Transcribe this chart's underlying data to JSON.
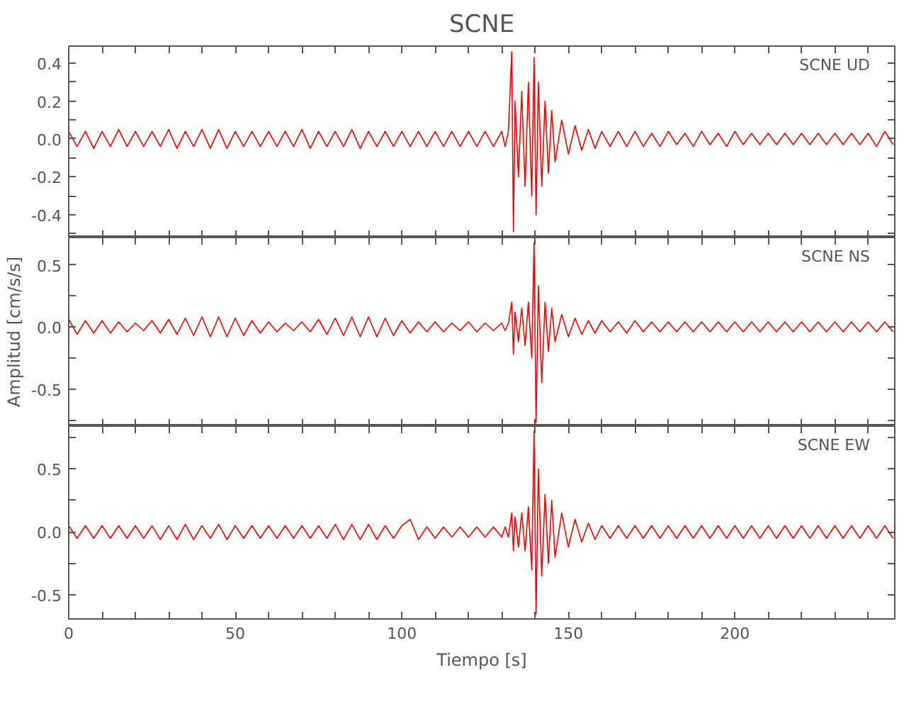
{
  "chart_data": [
    {
      "type": "line",
      "title": "SCNE",
      "color": "#ff0000",
      "grid": false,
      "tick_labels": "y",
      "annotations": [
        "SCNE UD"
      ],
      "xlim": [
        0,
        248
      ],
      "ylim": [
        -0.52,
        0.49
      ],
      "xticks": [
        0,
        {
          "value": 10,
          "label": null
        },
        {
          "value": 20,
          "label": null
        },
        {
          "value": 30,
          "label": null
        },
        {
          "value": 40,
          "label": null
        },
        50,
        {
          "value": 60,
          "label": null
        },
        {
          "value": 70,
          "label": null
        },
        {
          "value": 80,
          "label": null
        },
        {
          "value": 90,
          "label": null
        },
        100,
        {
          "value": 110,
          "label": null
        },
        {
          "value": 120,
          "label": null
        },
        {
          "value": 130,
          "label": null
        },
        {
          "value": 140,
          "label": null
        },
        150,
        {
          "value": 160,
          "label": null
        },
        {
          "value": 170,
          "label": null
        },
        {
          "value": 180,
          "label": null
        },
        {
          "value": 190,
          "label": null
        },
        200,
        {
          "value": 210,
          "label": null
        },
        {
          "value": 220,
          "label": null
        },
        {
          "value": 230,
          "label": null
        },
        {
          "value": 240,
          "label": null
        }
      ],
      "yticks": [
        {
          "value": -0.5,
          "label": null
        },
        -0.4,
        {
          "value": -0.3,
          "label": null
        },
        -0.2,
        {
          "value": -0.1,
          "label": null
        },
        {
          "value": 0,
          "label": "0.0"
        },
        {
          "value": 0.1,
          "label": null
        },
        0.2,
        {
          "value": 0.3,
          "label": null
        },
        0.4
      ],
      "x": [
        0,
        2.5,
        5,
        7.5,
        10,
        12.5,
        15,
        17.5,
        20,
        22.5,
        25,
        27.5,
        30,
        32.5,
        35,
        37.5,
        40,
        42.5,
        45,
        47.5,
        50,
        52.5,
        55,
        57.5,
        60,
        62.5,
        65,
        67.5,
        70,
        72.5,
        75,
        77.5,
        80,
        82.5,
        85,
        87.5,
        90,
        92.5,
        95,
        97.5,
        100,
        102.5,
        105,
        107.5,
        110,
        112.5,
        115,
        117.5,
        120,
        122.5,
        125,
        127.5,
        130,
        131,
        132,
        133,
        133.5,
        134,
        135,
        136,
        137,
        138,
        139,
        139.7,
        140.3,
        141,
        142,
        143,
        144,
        145,
        146,
        148,
        150,
        152,
        154,
        156,
        158,
        160,
        162.5,
        165,
        167.5,
        170,
        172.5,
        175,
        177.5,
        180,
        182.5,
        185,
        187.5,
        190,
        192.5,
        195,
        197.5,
        200,
        202.5,
        205,
        207.5,
        210,
        212.5,
        215,
        217.5,
        220,
        222.5,
        225,
        227.5,
        230,
        232.5,
        235,
        237.5,
        240,
        242.5,
        245,
        247.5
      ],
      "values": [
        0.04,
        -0.04,
        0.04,
        -0.05,
        0.04,
        -0.04,
        0.05,
        -0.04,
        0.04,
        -0.04,
        0.04,
        -0.04,
        0.05,
        -0.05,
        0.04,
        -0.04,
        0.05,
        -0.05,
        0.05,
        -0.05,
        0.04,
        -0.04,
        0.04,
        -0.04,
        0.04,
        -0.04,
        0.04,
        -0.04,
        0.05,
        -0.05,
        0.04,
        -0.04,
        0.04,
        -0.04,
        0.05,
        -0.05,
        0.04,
        -0.04,
        0.04,
        -0.04,
        0.04,
        -0.04,
        0.04,
        -0.04,
        0.04,
        -0.04,
        0.04,
        -0.04,
        0.04,
        -0.04,
        0.04,
        -0.04,
        0.04,
        -0.04,
        0.04,
        0.46,
        -0.49,
        0.2,
        -0.2,
        0.25,
        -0.25,
        0.3,
        -0.3,
        0.43,
        -0.4,
        0.3,
        -0.25,
        0.2,
        -0.18,
        0.15,
        -0.12,
        0.1,
        -0.08,
        0.07,
        -0.06,
        0.05,
        -0.05,
        0.04,
        -0.04,
        0.04,
        -0.04,
        0.04,
        -0.04,
        0.03,
        -0.04,
        0.04,
        -0.03,
        0.03,
        -0.04,
        0.04,
        -0.03,
        0.03,
        -0.04,
        0.04,
        -0.03,
        0.03,
        -0.03,
        0.03,
        -0.03,
        0.03,
        -0.03,
        0.03,
        -0.03,
        0.03,
        -0.03,
        0.03,
        -0.03,
        0.03,
        -0.03,
        0.03,
        -0.04,
        0.04,
        -0.03
      ]
    },
    {
      "type": "line",
      "ylabel": "Amplitud [cm/s/s]",
      "color": "#ff0000",
      "grid": false,
      "tick_labels": "y",
      "annotations": [
        "SCNE NS"
      ],
      "xlim": [
        0,
        248
      ],
      "ylim": [
        -0.8,
        0.72
      ],
      "xticks": [
        0,
        {
          "value": 10,
          "label": null
        },
        {
          "value": 20,
          "label": null
        },
        {
          "value": 30,
          "label": null
        },
        {
          "value": 40,
          "label": null
        },
        50,
        {
          "value": 60,
          "label": null
        },
        {
          "value": 70,
          "label": null
        },
        {
          "value": 80,
          "label": null
        },
        {
          "value": 90,
          "label": null
        },
        100,
        {
          "value": 110,
          "label": null
        },
        {
          "value": 120,
          "label": null
        },
        {
          "value": 130,
          "label": null
        },
        {
          "value": 140,
          "label": null
        },
        150,
        {
          "value": 160,
          "label": null
        },
        {
          "value": 170,
          "label": null
        },
        {
          "value": 180,
          "label": null
        },
        {
          "value": 190,
          "label": null
        },
        200,
        {
          "value": 210,
          "label": null
        },
        {
          "value": 220,
          "label": null
        },
        {
          "value": 230,
          "label": null
        },
        {
          "value": 240,
          "label": null
        }
      ],
      "yticks": [
        {
          "value": -0.75,
          "label": null
        },
        -0.5,
        {
          "value": -0.25,
          "label": null
        },
        {
          "value": 0,
          "label": "0.0"
        },
        {
          "value": 0.25,
          "label": null
        },
        0.5
      ],
      "x": [
        0,
        2.5,
        5,
        7.5,
        10,
        12.5,
        15,
        17.5,
        20,
        22.5,
        25,
        27.5,
        30,
        32.5,
        35,
        37.5,
        40,
        42.5,
        45,
        47.5,
        50,
        52.5,
        55,
        57.5,
        60,
        62.5,
        65,
        67.5,
        70,
        72.5,
        75,
        77.5,
        80,
        82.5,
        85,
        87.5,
        90,
        92.5,
        95,
        97.5,
        100,
        102.5,
        105,
        107.5,
        110,
        112.5,
        115,
        117.5,
        120,
        122.5,
        125,
        127.5,
        130,
        131,
        132,
        133,
        133.5,
        134,
        135,
        136,
        137,
        138,
        139,
        139.7,
        140.3,
        141,
        142,
        143,
        144,
        145,
        146,
        148,
        150,
        152,
        154,
        156,
        158,
        160,
        162.5,
        165,
        167.5,
        170,
        172.5,
        175,
        177.5,
        180,
        182.5,
        185,
        187.5,
        190,
        192.5,
        195,
        197.5,
        200,
        202.5,
        205,
        207.5,
        210,
        212.5,
        215,
        217.5,
        220,
        222.5,
        225,
        227.5,
        230,
        232.5,
        235,
        237.5,
        240,
        242.5,
        245,
        247.5
      ],
      "values": [
        0.06,
        -0.06,
        0.05,
        -0.05,
        0.05,
        -0.05,
        0.04,
        -0.04,
        0.03,
        -0.03,
        0.05,
        -0.05,
        0.06,
        -0.06,
        0.07,
        -0.07,
        0.08,
        -0.08,
        0.08,
        -0.08,
        0.07,
        -0.07,
        0.05,
        -0.05,
        0.04,
        -0.04,
        0.03,
        -0.03,
        0.04,
        -0.04,
        0.06,
        -0.06,
        0.07,
        -0.07,
        0.08,
        -0.08,
        0.08,
        -0.08,
        0.07,
        -0.07,
        0.05,
        -0.05,
        0.04,
        -0.04,
        0.04,
        -0.04,
        0.03,
        -0.03,
        0.04,
        -0.04,
        0.03,
        -0.03,
        0.03,
        -0.03,
        0.03,
        0.2,
        -0.22,
        0.12,
        -0.12,
        0.15,
        -0.15,
        0.2,
        -0.25,
        0.68,
        -0.77,
        0.33,
        -0.45,
        0.2,
        -0.2,
        0.15,
        -0.12,
        0.1,
        -0.08,
        0.07,
        -0.06,
        0.05,
        -0.05,
        0.05,
        -0.04,
        0.04,
        -0.05,
        0.05,
        -0.04,
        0.04,
        -0.04,
        0.04,
        -0.04,
        0.04,
        -0.04,
        0.04,
        -0.04,
        0.04,
        -0.04,
        0.04,
        -0.04,
        0.04,
        -0.04,
        0.04,
        -0.04,
        0.04,
        -0.04,
        0.04,
        -0.04,
        0.04,
        -0.04,
        0.04,
        -0.04,
        0.04,
        -0.04,
        0.04,
        -0.04,
        0.04,
        -0.04
      ]
    },
    {
      "type": "line",
      "xlabel": "Tiempo [s]",
      "color": "#ff0000",
      "grid": false,
      "annotations": [
        "SCNE EW"
      ],
      "xlim": [
        0,
        248
      ],
      "ylim": [
        -0.69,
        0.84
      ],
      "xticks": [
        0,
        {
          "value": 10,
          "label": null
        },
        {
          "value": 20,
          "label": null
        },
        {
          "value": 30,
          "label": null
        },
        {
          "value": 40,
          "label": null
        },
        50,
        {
          "value": 60,
          "label": null
        },
        {
          "value": 70,
          "label": null
        },
        {
          "value": 80,
          "label": null
        },
        {
          "value": 90,
          "label": null
        },
        100,
        {
          "value": 110,
          "label": null
        },
        {
          "value": 120,
          "label": null
        },
        {
          "value": 130,
          "label": null
        },
        {
          "value": 140,
          "label": null
        },
        150,
        {
          "value": 160,
          "label": null
        },
        {
          "value": 170,
          "label": null
        },
        {
          "value": 180,
          "label": null
        },
        {
          "value": 190,
          "label": null
        },
        200,
        {
          "value": 210,
          "label": null
        },
        {
          "value": 220,
          "label": null
        },
        {
          "value": 230,
          "label": null
        },
        {
          "value": 240,
          "label": null
        }
      ],
      "yticks": [
        -0.5,
        {
          "value": -0.25,
          "label": null
        },
        {
          "value": 0,
          "label": "0.0"
        },
        {
          "value": 0.25,
          "label": null
        },
        0.5,
        {
          "value": 0.75,
          "label": null
        }
      ],
      "x": [
        0,
        2.5,
        5,
        7.5,
        10,
        12.5,
        15,
        17.5,
        20,
        22.5,
        25,
        27.5,
        30,
        32.5,
        35,
        37.5,
        40,
        42.5,
        45,
        47.5,
        50,
        52.5,
        55,
        57.5,
        60,
        62.5,
        65,
        67.5,
        70,
        72.5,
        75,
        77.5,
        80,
        82.5,
        85,
        87.5,
        90,
        92.5,
        95,
        97.5,
        100,
        102.5,
        105,
        107.5,
        110,
        112.5,
        115,
        117.5,
        120,
        122.5,
        125,
        127.5,
        130,
        131,
        132,
        133,
        133.5,
        134,
        135,
        136,
        137,
        138,
        139,
        139.7,
        140.3,
        141,
        142,
        143,
        144,
        145,
        146,
        148,
        150,
        152,
        154,
        156,
        158,
        160,
        162.5,
        165,
        167.5,
        170,
        172.5,
        175,
        177.5,
        180,
        182.5,
        185,
        187.5,
        190,
        192.5,
        195,
        197.5,
        200,
        202.5,
        205,
        207.5,
        210,
        212.5,
        215,
        217.5,
        220,
        222.5,
        225,
        227.5,
        230,
        232.5,
        235,
        237.5,
        240,
        242.5,
        245,
        247.5
      ],
      "values": [
        0.05,
        -0.05,
        0.05,
        -0.05,
        0.05,
        -0.05,
        0.05,
        -0.05,
        0.05,
        -0.05,
        0.05,
        -0.06,
        0.05,
        -0.06,
        0.06,
        -0.06,
        0.05,
        -0.05,
        0.06,
        -0.06,
        0.05,
        -0.05,
        0.05,
        -0.05,
        0.05,
        -0.05,
        0.05,
        -0.05,
        0.05,
        -0.05,
        0.05,
        -0.05,
        0.06,
        -0.06,
        0.06,
        -0.06,
        0.06,
        -0.06,
        0.05,
        -0.05,
        0.05,
        0.1,
        -0.06,
        0.04,
        -0.05,
        0.04,
        -0.04,
        0.04,
        -0.04,
        0.04,
        -0.04,
        0.04,
        -0.04,
        0.04,
        -0.04,
        0.15,
        -0.15,
        0.12,
        -0.12,
        0.15,
        -0.15,
        0.2,
        -0.3,
        0.8,
        -0.65,
        0.5,
        -0.35,
        0.3,
        -0.25,
        0.25,
        -0.2,
        0.15,
        -0.12,
        0.1,
        -0.08,
        0.07,
        -0.06,
        0.05,
        -0.05,
        0.05,
        -0.05,
        0.05,
        -0.05,
        0.05,
        -0.05,
        0.05,
        -0.05,
        0.05,
        -0.05,
        0.05,
        -0.05,
        0.05,
        -0.05,
        0.05,
        -0.05,
        0.05,
        -0.05,
        0.05,
        -0.05,
        0.05,
        -0.05,
        0.05,
        -0.05,
        0.05,
        -0.05,
        0.05,
        -0.05,
        0.05,
        -0.05,
        0.05,
        -0.05,
        0.05,
        -0.05
      ]
    }
  ]
}
